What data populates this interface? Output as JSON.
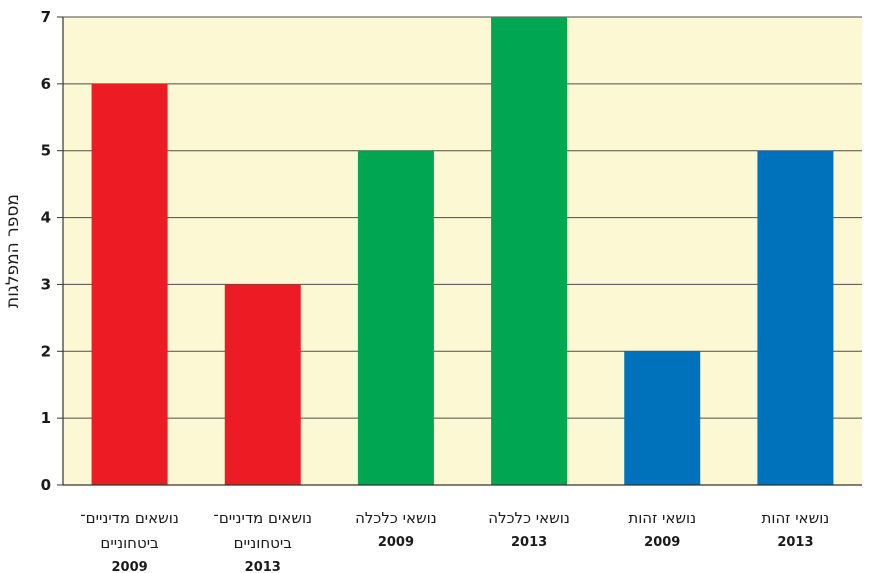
{
  "chart_data": {
    "type": "bar",
    "ylabel": "מספר המפלגות",
    "ylim": [
      0,
      7
    ],
    "yticks": [
      0,
      1,
      2,
      3,
      4,
      5,
      6,
      7
    ],
    "grid": true,
    "background_color": "#fdf8d4",
    "categories": [
      {
        "lines": [
          "נושאים מדיניים־",
          "ביטחוניים"
        ],
        "year": "2009",
        "value": 6,
        "color": "#ed1c24"
      },
      {
        "lines": [
          "נושאים מדיניים־",
          "ביטחוניים"
        ],
        "year": "2013",
        "value": 3,
        "color": "#ed1c24"
      },
      {
        "lines": [
          "נושאי כלכלה"
        ],
        "year": "2009",
        "value": 5,
        "color": "#00a651"
      },
      {
        "lines": [
          "נושאי כלכלה"
        ],
        "year": "2013",
        "value": 7,
        "color": "#00a651"
      },
      {
        "lines": [
          "נושאי זהות"
        ],
        "year": "2009",
        "value": 2,
        "color": "#0072bc"
      },
      {
        "lines": [
          "נושאי זהות"
        ],
        "year": "2013",
        "value": 5,
        "color": "#0072bc"
      }
    ]
  }
}
